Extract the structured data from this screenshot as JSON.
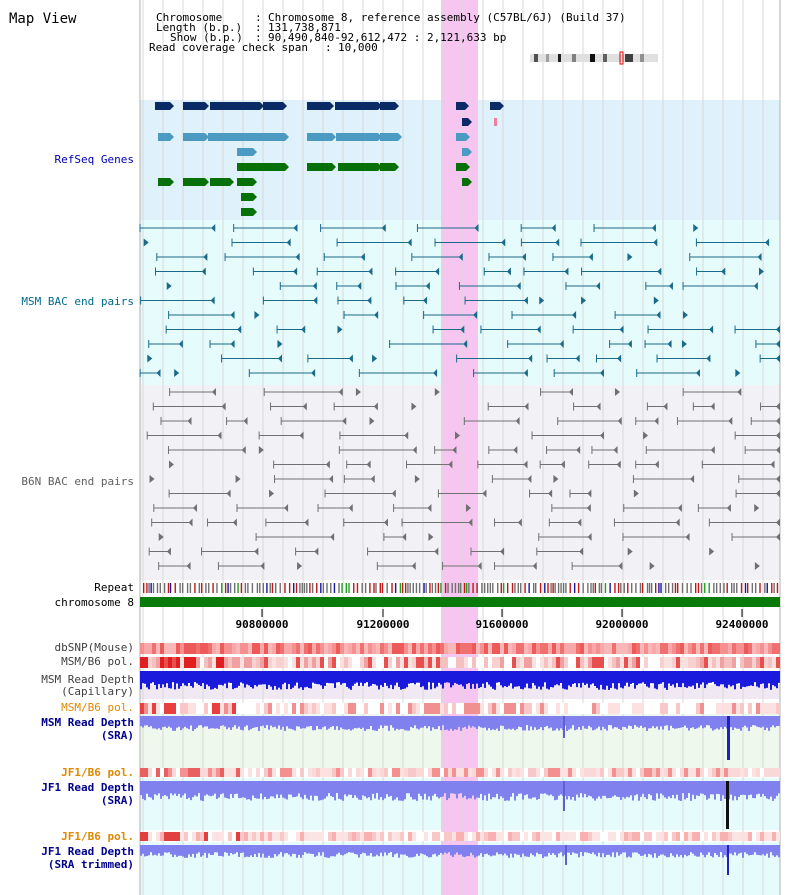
{
  "header": {
    "view_title": "Map View",
    "info": [
      {
        "key": "Chromosome",
        "value": "Chromosome 8, reference assembly (C57BL/6J) (Build 37)"
      },
      {
        "key": "Length (b.p.)",
        "value": "131,738,871"
      },
      {
        "key": "Show (b.p.)",
        "value": "90,490,840-92,612,472 : 2,121,633 bp"
      },
      {
        "key": "Read coverage check span",
        "value": "10,000"
      }
    ]
  },
  "colors": {
    "refseq_bg": "#dff1fb",
    "msm_bac_bg": "#e6fbfb",
    "b6n_bac_bg": "#f2f2f6",
    "highlight": "#f6c6f0",
    "gene_dark": "#0a2b66",
    "gene_mid": "#4a9ac2",
    "gene_green": "#087008",
    "msm_line": "#1a6a8a",
    "b6n_line": "#707070",
    "chrom_bar": "#0a7a0a",
    "depth_dark": "#1a1adc",
    "depth_light": "#8080ee",
    "pol_red": "#e03030",
    "pol_orange_label": "#e08800",
    "depth_label_blue": "#00008b",
    "gridline": "#d8d8d8"
  },
  "tracks": {
    "refseq": "RefSeq Genes",
    "msm_bac": "MSM BAC end pairs",
    "b6n_bac": "B6N BAC end pairs",
    "repeat": "Repeat",
    "chromosome": "chromosome 8",
    "dbsnp": "dbSNP(Mouse)",
    "msm_b6_pol_1": "MSM/B6 pol.",
    "msm_read_depth_cap_1": "MSM Read Depth",
    "msm_read_depth_cap_2": "(Capillary)",
    "msm_b6_pol_2": "MSM/B6 pol.",
    "msm_read_depth_sra_1": "MSM Read Depth",
    "msm_read_depth_sra_2": "(SRA)",
    "jf1_b6_pol_1": "JF1/B6 pol.",
    "jf1_read_depth_sra_1": "JF1 Read Depth",
    "jf1_read_depth_sra_2": "(SRA)",
    "jf1_b6_pol_2": "JF1/B6 pol.",
    "jf1_read_depth_trim_1": "JF1 Read Depth",
    "jf1_read_depth_trim_2": "(SRA trimmed)"
  },
  "axis": {
    "ticks": [
      "90800000",
      "91200000",
      "91600000",
      "92000000",
      "92400000"
    ]
  }
}
